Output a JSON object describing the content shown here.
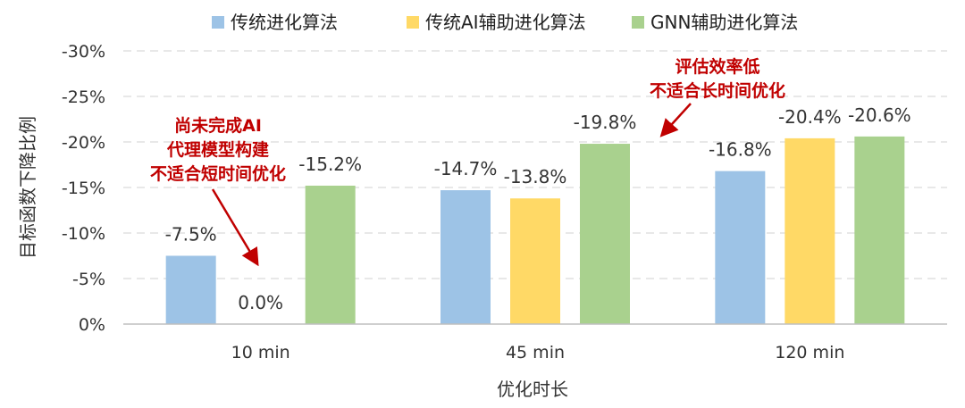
{
  "chart_data": {
    "type": "bar",
    "categories": [
      "10 min",
      "45 min",
      "120 min"
    ],
    "series": [
      {
        "name": "传统进化算法",
        "color": "#9dc3e6",
        "values": [
          -7.5,
          -14.7,
          -16.8
        ],
        "labels": [
          "-7.5%",
          "-14.7%",
          "-16.8%"
        ]
      },
      {
        "name": "传统AI辅助进化算法",
        "color": "#ffd966",
        "values": [
          0.0,
          -13.8,
          -20.4
        ],
        "labels": [
          "0.0%",
          "-13.8%",
          "-20.4%"
        ]
      },
      {
        "name": "GNN辅助进化算法",
        "color": "#a9d18e",
        "values": [
          -15.2,
          -19.8,
          -20.6
        ],
        "labels": [
          "-15.2%",
          "-19.8%",
          "-20.6%"
        ]
      }
    ],
    "ylabel": "目标函数下降比例",
    "xlabel": "优化时长",
    "ylim": [
      0,
      -30
    ],
    "yticks": [
      0,
      -5,
      -10,
      -15,
      -20,
      -25,
      -30
    ],
    "ytick_labels": [
      "0%",
      "-5%",
      "-10%",
      "-15%",
      "-20%",
      "-25%",
      "-30%"
    ],
    "grid": true,
    "legend": "top",
    "annotations": [
      {
        "lines": [
          "尚未完成AI",
          "代理模型构建",
          "不适合短时间优化"
        ],
        "color": "#c00000",
        "target": {
          "category": "10 min",
          "series": 1
        }
      },
      {
        "lines": [
          "评估效率低",
          "不适合长时间优化"
        ],
        "color": "#c00000",
        "target": {
          "category": "120 min",
          "series": 0
        }
      }
    ]
  }
}
